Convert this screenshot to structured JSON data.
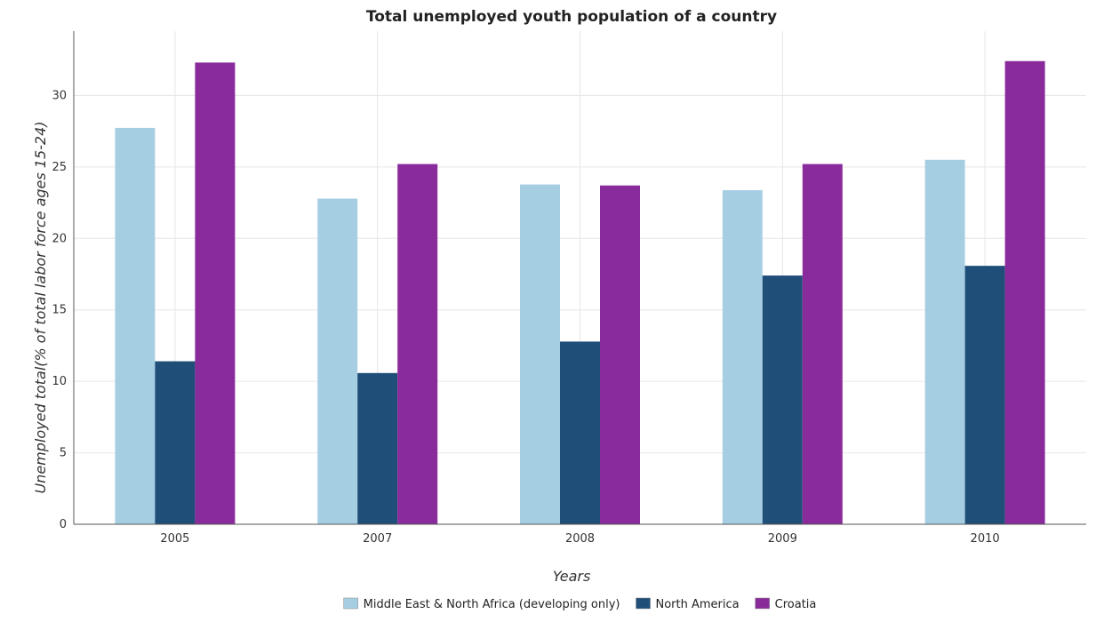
{
  "chart_data": {
    "type": "bar",
    "title": "Total unemployed youth population of a country",
    "xlabel": "Years",
    "ylabel": "Unemployed total(% of total labor force ages 15-24)",
    "categories": [
      "2005",
      "2007",
      "2008",
      "2009",
      "2010"
    ],
    "ylim": [
      0,
      34.5
    ],
    "yticks": [
      0,
      5,
      10,
      15,
      20,
      25,
      30
    ],
    "grid": true,
    "legend_position": "bottom",
    "series": [
      {
        "name": "Middle East & North Africa (developing only)",
        "color": "#a6cee3",
        "values": [
          27.73,
          22.78,
          23.77,
          23.37,
          25.5
        ]
      },
      {
        "name": "North America",
        "color": "#1f4e79",
        "values": [
          11.4,
          10.58,
          12.78,
          17.4,
          18.08
        ]
      },
      {
        "name": "Croatia",
        "color": "#8a2b9c",
        "values": [
          32.3,
          25.2,
          23.7,
          25.2,
          32.4
        ]
      }
    ]
  }
}
